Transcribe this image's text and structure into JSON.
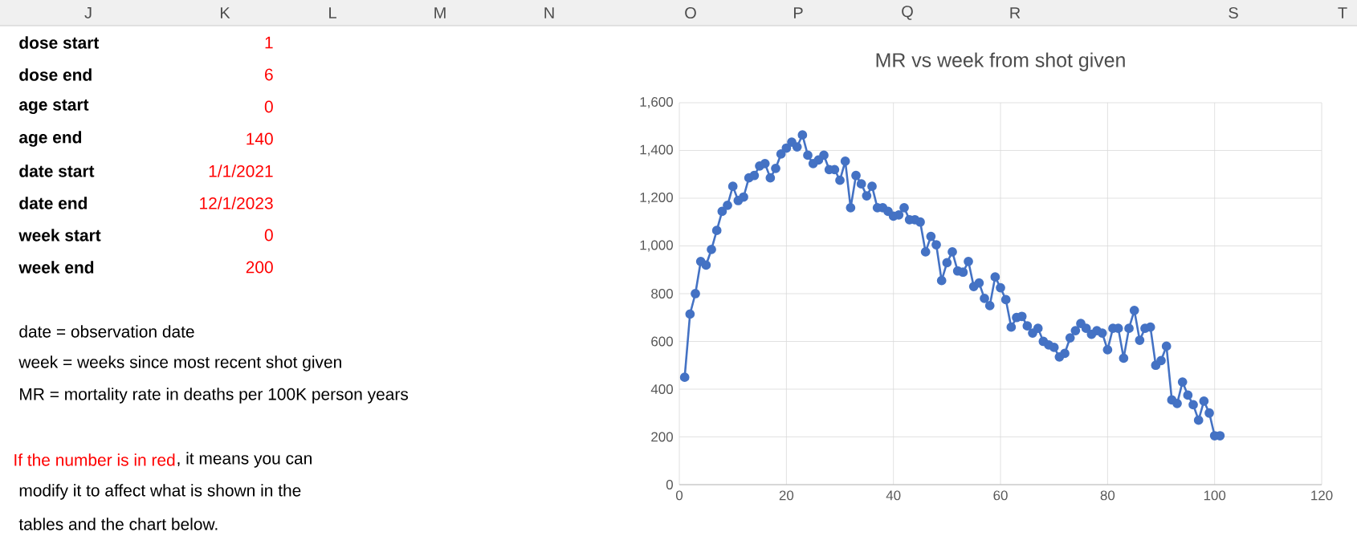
{
  "chart_data": [
    {
      "type": "other",
      "annotations": [
        "dose start",
        "1",
        "dose end",
        "6",
        "age start",
        "0",
        "age end",
        "140",
        "date start",
        "1/1/2021",
        "date end",
        "12/1/2023",
        "week start",
        "0",
        "week end",
        "200",
        "date = observation date",
        "week = weeks since most recent shot given",
        "MR = mortality rate in deaths per 100K person years",
        "If the number is in red",
        ", it means you can",
        "modify it to affect what is shown in the",
        "tables and the chart below.",
        "J",
        "K",
        "L",
        "M",
        "N",
        "O",
        "P",
        "Q",
        "R",
        "S",
        "T"
      ]
    },
    {
      "type": "line",
      "title": "MR vs week from shot given",
      "color": "#4472c4",
      "marker": "circle",
      "line_style": "solid",
      "grid": true,
      "x": [
        1,
        2,
        3,
        4,
        5,
        6,
        7,
        8,
        9,
        10,
        11,
        12,
        13,
        14,
        15,
        16,
        17,
        18,
        19,
        20,
        21,
        22,
        23,
        24,
        25,
        26,
        27,
        28,
        29,
        30,
        31,
        32,
        33,
        34,
        35,
        36,
        37,
        38,
        39,
        40,
        41,
        42,
        43,
        44,
        45,
        46,
        47,
        48,
        49,
        50,
        51,
        52,
        53,
        54,
        55,
        56,
        57,
        58,
        59,
        60,
        61,
        62,
        63,
        64,
        65,
        66,
        67,
        68,
        69,
        70,
        71,
        72,
        73,
        74,
        75,
        76,
        77,
        78,
        79,
        80,
        81,
        82,
        83,
        84,
        85,
        86,
        87,
        88,
        89,
        90,
        91,
        92,
        93,
        94,
        95,
        96,
        97,
        98,
        99,
        100,
        101
      ],
      "values": [
        450,
        715,
        800,
        935,
        920,
        985,
        1065,
        1145,
        1170,
        1250,
        1190,
        1205,
        1285,
        1295,
        1335,
        1345,
        1285,
        1325,
        1385,
        1410,
        1435,
        1415,
        1465,
        1380,
        1345,
        1360,
        1380,
        1320,
        1320,
        1275,
        1355,
        1160,
        1295,
        1260,
        1210,
        1250,
        1160,
        1160,
        1145,
        1125,
        1130,
        1160,
        1110,
        1110,
        1100,
        975,
        1040,
        1005,
        855,
        930,
        975,
        895,
        890,
        935,
        830,
        845,
        780,
        750,
        870,
        825,
        775,
        660,
        700,
        705,
        665,
        635,
        655,
        600,
        585,
        575,
        535,
        550,
        615,
        645,
        675,
        655,
        630,
        645,
        635,
        565,
        655,
        655,
        530,
        655,
        730,
        605,
        655,
        660,
        500,
        520,
        580,
        355,
        340,
        430,
        375,
        335,
        270,
        350,
        300,
        205,
        205
      ],
      "xlim": [
        0,
        120
      ],
      "xticks": [
        0,
        20,
        40,
        60,
        80,
        100,
        120
      ],
      "ylim": [
        0,
        1600
      ],
      "yticks": [
        0,
        200,
        400,
        600,
        800,
        {
          "value": 1000,
          "label": "1,000"
        },
        {
          "value": 1200,
          "label": "1,200"
        },
        {
          "value": 1400,
          "label": "1,400"
        },
        {
          "value": 1600,
          "label": "1,600"
        }
      ]
    }
  ]
}
